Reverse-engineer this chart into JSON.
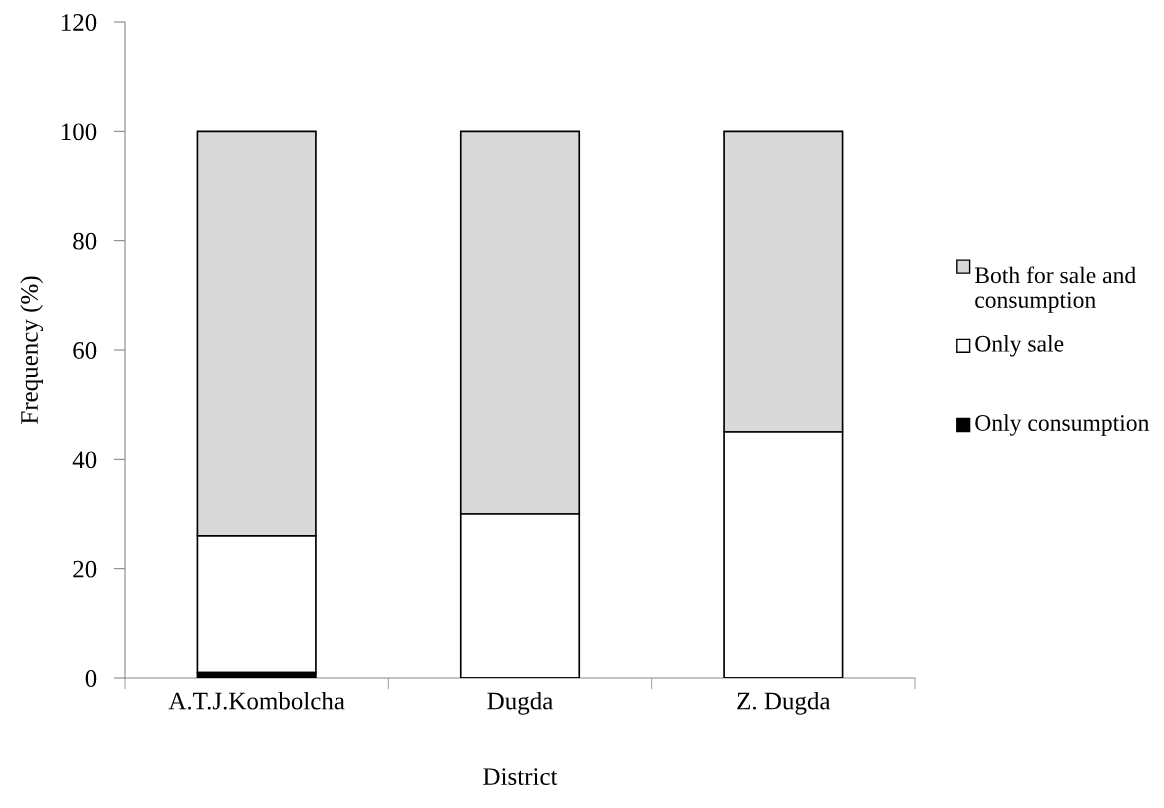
{
  "chart_data": {
    "type": "bar",
    "stacked": true,
    "xlabel": "District",
    "ylabel": "Frequency (%)",
    "categories": [
      "A.T.J.Kombolcha",
      "Dugda",
      "Z. Dugda"
    ],
    "series": [
      {
        "name": "Only consumption",
        "color": "#000000",
        "values": [
          1,
          0,
          0
        ]
      },
      {
        "name": "Only sale",
        "color": "#ffffff",
        "values": [
          25,
          30,
          45
        ]
      },
      {
        "name": "Both for sale and consumption",
        "color": "#d9d9d9",
        "values": [
          74,
          70,
          55
        ]
      }
    ],
    "ylim": [
      0,
      120
    ],
    "yticks": [
      0,
      20,
      40,
      60,
      80,
      100,
      120
    ],
    "grid": false,
    "legend": "right"
  }
}
